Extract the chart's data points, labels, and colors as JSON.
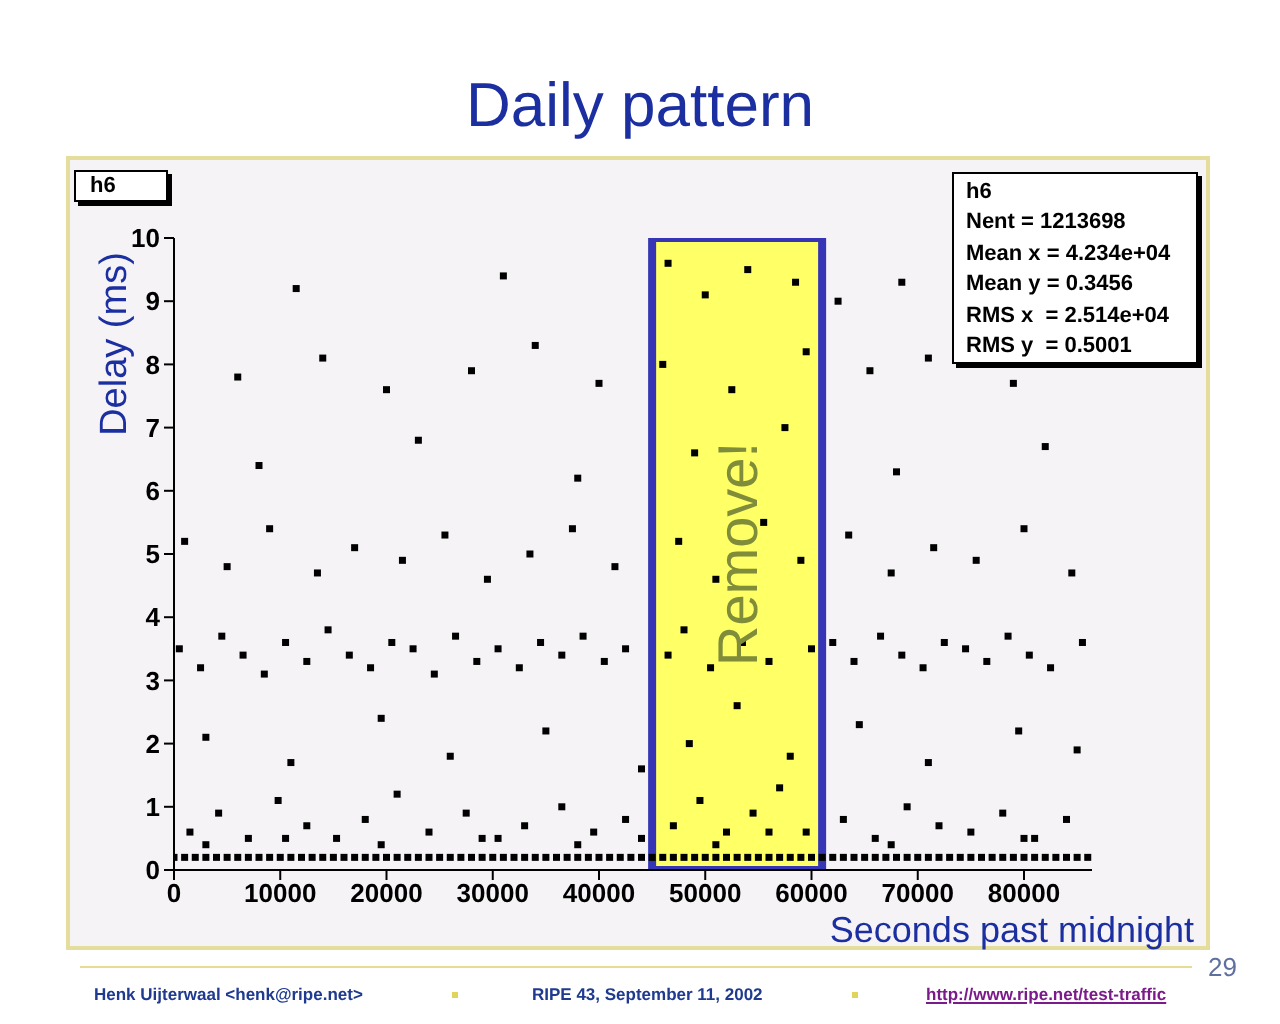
{
  "chart_data": {
    "type": "scatter",
    "title": "Daily pattern",
    "xlabel": "Seconds past midnight",
    "ylabel": "Delay (ms)",
    "xlim": [
      0,
      86400
    ],
    "ylim": [
      0,
      10
    ],
    "xticks": [
      0,
      10000,
      20000,
      30000,
      40000,
      50000,
      60000,
      70000,
      80000
    ],
    "yticks": [
      0,
      1,
      2,
      3,
      4,
      5,
      6,
      7,
      8,
      9,
      10
    ],
    "marker": "square",
    "bands": [
      {
        "axis": "x",
        "from": 45000,
        "to": 61000,
        "label": "Remove!",
        "color": "#ffff66"
      }
    ],
    "annotations": [
      "h6",
      "h6",
      "Nent = 1213698",
      "Mean x = 4.234e+04",
      "Mean y = 0.3456",
      "RMS x  = 2.514e+04",
      "RMS y  = 0.5001",
      "29",
      "Henk Uijterwaal <henk@ripe.net>",
      "RIPE 43, September 11, 2002",
      "http://www.ripe.net/test-traffic"
    ],
    "series": [
      {
        "color": "#000000",
        "x": [
          0,
          1000,
          2000,
          3000,
          4000,
          5000,
          6000,
          7000,
          8000,
          9000,
          10000,
          11000,
          12000,
          13000,
          14000,
          15000,
          16000,
          17000,
          18000,
          19000,
          20000,
          21000,
          22000,
          23000,
          24000,
          25000,
          26000,
          27000,
          28000,
          29000,
          30000,
          31000,
          32000,
          33000,
          34000,
          35000,
          36000,
          37000,
          38000,
          39000,
          40000,
          41000,
          42000,
          43000,
          44000,
          45000,
          46000,
          47000,
          48000,
          49000,
          50000,
          51000,
          52000,
          53000,
          54000,
          55000,
          56000,
          57000,
          58000,
          59000,
          60000,
          61000,
          62000,
          63000,
          64000,
          65000,
          66000,
          67000,
          68000,
          69000,
          70000,
          71000,
          72000,
          73000,
          74000,
          75000,
          76000,
          77000,
          78000,
          79000,
          80000,
          81000,
          82000,
          83000,
          84000,
          85000,
          86000
        ],
        "values": [
          0.2,
          0.2,
          0.2,
          0.2,
          0.2,
          0.2,
          0.2,
          0.2,
          0.2,
          0.2,
          0.2,
          0.2,
          0.2,
          0.2,
          0.2,
          0.2,
          0.2,
          0.2,
          0.2,
          0.2,
          0.2,
          0.2,
          0.2,
          0.2,
          0.2,
          0.2,
          0.2,
          0.2,
          0.2,
          0.2,
          0.2,
          0.2,
          0.2,
          0.2,
          0.2,
          0.2,
          0.2,
          0.2,
          0.2,
          0.2,
          0.2,
          0.2,
          0.2,
          0.2,
          0.2,
          0.2,
          0.2,
          0.2,
          0.2,
          0.2,
          0.2,
          0.2,
          0.2,
          0.2,
          0.2,
          0.2,
          0.2,
          0.2,
          0.2,
          0.2,
          0.2,
          0.2,
          0.2,
          0.2,
          0.2,
          0.2,
          0.2,
          0.2,
          0.2,
          0.2,
          0.2,
          0.2,
          0.2,
          0.2,
          0.2,
          0.2,
          0.2,
          0.2,
          0.2,
          0.2,
          0.2,
          0.2,
          0.2,
          0.2,
          0.2,
          0.2,
          0.2
        ]
      },
      {
        "color": "#000000",
        "x": [
          1500,
          4200,
          7000,
          9800,
          12500,
          15300,
          18000,
          21000,
          24000,
          27500,
          30500,
          33000,
          36500,
          39500,
          42500,
          47000,
          49500,
          52000,
          54500,
          57000,
          59500,
          63000,
          66000,
          69000,
          72000,
          75000,
          78000,
          81000,
          84000,
          3000,
          10500,
          19500,
          29000,
          38000,
          44000,
          51000,
          56000,
          67500,
          80000,
          3000,
          11000,
          19500,
          26000,
          35000,
          44000,
          48500,
          53000,
          58000,
          64500,
          71000,
          79500,
          85000,
          500,
          2500,
          4500,
          6500,
          8500,
          10500,
          12500,
          14500,
          16500,
          18500,
          20500,
          22500,
          24500,
          26500,
          28500,
          30500,
          32500,
          34500,
          36500,
          38500,
          40500,
          42500,
          46500,
          48000,
          50500,
          53500,
          56000,
          60000,
          62000,
          64000,
          66500,
          68500,
          70500,
          72500,
          74500,
          76500,
          78500,
          80500,
          82500,
          85500,
          1000,
          5000,
          9000,
          13500,
          17000,
          21500,
          25500,
          29500,
          33500,
          37500,
          41500,
          47500,
          51000,
          55500,
          59000,
          63500,
          67500,
          71500,
          75500,
          80000,
          84500,
          8000,
          23000,
          38000,
          49000,
          57500,
          68000,
          82000,
          6000,
          14000,
          20000,
          28000,
          34000,
          40000,
          46000,
          52500,
          59500,
          65500,
          71000,
          79000,
          11500,
          31000,
          46500,
          50000,
          54000,
          58500,
          62500,
          68500
        ],
        "values": [
          0.6,
          0.9,
          0.5,
          1.1,
          0.7,
          0.5,
          0.8,
          1.2,
          0.6,
          0.9,
          0.5,
          0.7,
          1.0,
          0.6,
          0.8,
          0.7,
          1.1,
          0.6,
          0.9,
          1.3,
          0.6,
          0.8,
          0.5,
          1.0,
          0.7,
          0.6,
          0.9,
          0.5,
          0.8,
          0.4,
          0.5,
          0.4,
          0.5,
          0.4,
          0.5,
          0.4,
          0.6,
          0.4,
          0.5,
          2.1,
          1.7,
          2.4,
          1.8,
          2.2,
          1.6,
          2.0,
          2.6,
          1.8,
          2.3,
          1.7,
          2.2,
          1.9,
          3.5,
          3.2,
          3.7,
          3.4,
          3.1,
          3.6,
          3.3,
          3.8,
          3.4,
          3.2,
          3.6,
          3.5,
          3.1,
          3.7,
          3.3,
          3.5,
          3.2,
          3.6,
          3.4,
          3.7,
          3.3,
          3.5,
          3.4,
          3.8,
          3.2,
          3.6,
          3.3,
          3.5,
          3.6,
          3.3,
          3.7,
          3.4,
          3.2,
          3.6,
          3.5,
          3.3,
          3.7,
          3.4,
          3.2,
          3.6,
          5.2,
          4.8,
          5.4,
          4.7,
          5.1,
          4.9,
          5.3,
          4.6,
          5.0,
          5.4,
          4.8,
          5.2,
          4.6,
          5.5,
          4.9,
          5.3,
          4.7,
          5.1,
          4.9,
          5.4,
          4.7,
          6.4,
          6.8,
          6.2,
          6.6,
          7.0,
          6.3,
          6.7,
          7.8,
          8.1,
          7.6,
          7.9,
          8.3,
          7.7,
          8.0,
          7.6,
          8.2,
          7.9,
          8.1,
          7.7,
          9.2,
          9.4,
          9.6,
          9.1,
          9.5,
          9.3,
          9.0,
          9.3
        ]
      }
    ]
  }
}
